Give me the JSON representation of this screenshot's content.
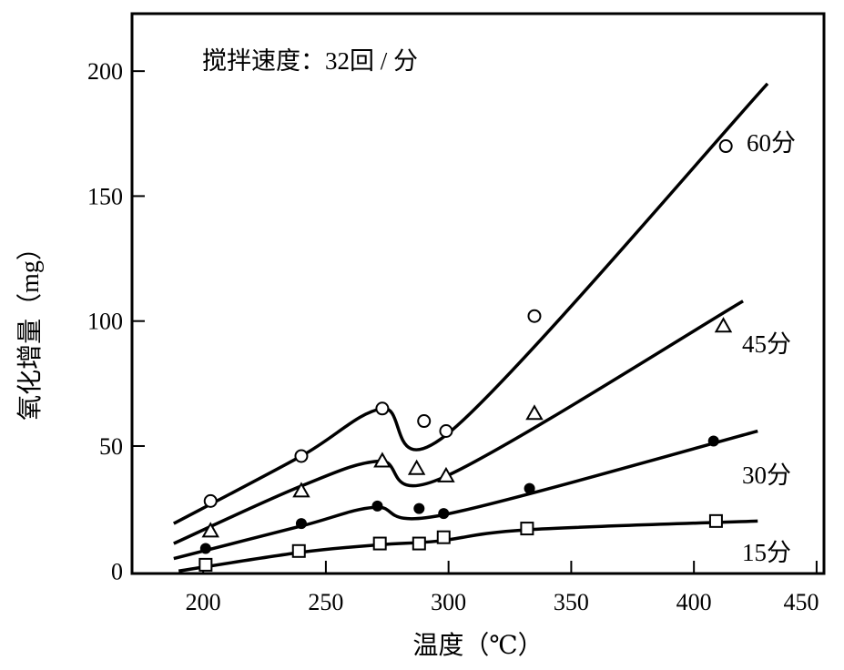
{
  "chart_data": {
    "type": "line",
    "title": "",
    "annotation": "搅拌速度：32回 / 分",
    "xlabel": "温度（℃）",
    "ylabel": "氧化增量（mg）",
    "xlim": [
      171,
      453
    ],
    "ylim": [
      -1,
      223
    ],
    "xticks": [
      200,
      250,
      300,
      350,
      400,
      450
    ],
    "yticks": [
      0,
      50,
      100,
      150,
      200
    ],
    "grid": false,
    "series": [
      {
        "name": "60分",
        "marker": "open-circle",
        "points": [
          [
            203,
            28
          ],
          [
            240,
            46
          ],
          [
            273,
            65
          ],
          [
            290,
            60
          ],
          [
            299,
            56
          ],
          [
            335,
            102
          ],
          [
            413,
            170
          ]
        ],
        "fit": [
          [
            188,
            19
          ],
          [
            240,
            46
          ],
          [
            273,
            65
          ],
          [
            301,
            56
          ],
          [
            430,
            195
          ]
        ]
      },
      {
        "name": "45分",
        "marker": "open-triangle",
        "points": [
          [
            203,
            16
          ],
          [
            240,
            32
          ],
          [
            273,
            44
          ],
          [
            287,
            41
          ],
          [
            299,
            38
          ],
          [
            335,
            63
          ],
          [
            412,
            98
          ]
        ],
        "fit": [
          [
            188,
            11
          ],
          [
            240,
            34
          ],
          [
            272,
            44
          ],
          [
            298,
            37.5
          ],
          [
            420,
            108
          ]
        ]
      },
      {
        "name": "30分",
        "marker": "filled-circle",
        "points": [
          [
            201,
            9
          ],
          [
            240,
            19
          ],
          [
            271,
            26
          ],
          [
            288,
            25
          ],
          [
            298,
            23
          ],
          [
            333,
            33
          ],
          [
            408,
            52
          ]
        ],
        "fit": [
          [
            188,
            5
          ],
          [
            240,
            18
          ],
          [
            270,
            25.5
          ],
          [
            298,
            22.5
          ],
          [
            426,
            56
          ]
        ]
      },
      {
        "name": "15分",
        "marker": "open-square",
        "points": [
          [
            201,
            2.5
          ],
          [
            239,
            8
          ],
          [
            272,
            11
          ],
          [
            288,
            11
          ],
          [
            298,
            13.5
          ],
          [
            332,
            17
          ],
          [
            409,
            20
          ]
        ],
        "fit": [
          [
            190,
            0
          ],
          [
            240,
            7.5
          ],
          [
            272,
            10.5
          ],
          [
            296,
            12
          ],
          [
            332,
            16.5
          ],
          [
            426,
            20
          ]
        ]
      }
    ]
  }
}
